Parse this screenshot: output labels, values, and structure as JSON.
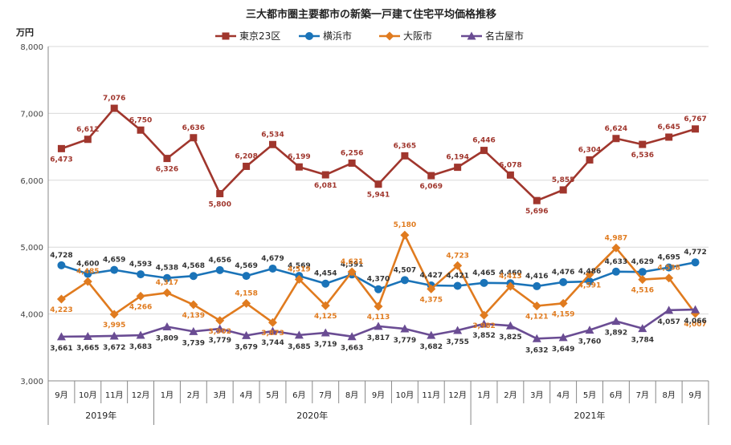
{
  "chart_data": {
    "type": "line",
    "title": "三大都市圏主要都市の新築一戸建て住宅平均価格推移",
    "ylabel": "万円",
    "ylim": [
      3000,
      8000
    ],
    "yticks": [
      "3,000",
      "4,000",
      "5,000",
      "6,000",
      "7,000",
      "8,000"
    ],
    "grid": true,
    "legend_position": "top",
    "categories": [
      "9月",
      "10月",
      "11月",
      "12月",
      "1月",
      "2月",
      "3月",
      "4月",
      "5月",
      "6月",
      "7月",
      "8月",
      "9月",
      "10月",
      "11月",
      "12月",
      "1月",
      "2月",
      "3月",
      "4月",
      "5月",
      "6月",
      "7月",
      "8月",
      "9月"
    ],
    "year_groups": [
      {
        "label": "2019年",
        "start": 0,
        "end": 3
      },
      {
        "label": "2020年",
        "start": 4,
        "end": 15
      },
      {
        "label": "2021年",
        "start": 16,
        "end": 24
      }
    ],
    "series": [
      {
        "name": "東京23区",
        "color": "#A0362D",
        "marker": "square",
        "values": [
          6473,
          6612,
          7076,
          6750,
          6326,
          6636,
          5800,
          6208,
          6534,
          6199,
          6081,
          6256,
          5941,
          6365,
          6069,
          6194,
          6446,
          6078,
          5696,
          5855,
          6304,
          6624,
          6536,
          6645,
          6767
        ],
        "labels": [
          "6,473",
          "6,612",
          "7,076",
          "6,750",
          "6,326",
          "6,636",
          "5,800",
          "6,208",
          "6,534",
          "6,199",
          "6,081",
          "6,256",
          "5,941",
          "6,365",
          "6,069",
          "6,194",
          "6,446",
          "6,078",
          "5,696",
          "5,855",
          "6,304",
          "6,624",
          "6,536",
          "6,645",
          "6,767"
        ]
      },
      {
        "name": "横浜市",
        "color": "#1A73B8",
        "marker": "circle",
        "values": [
          4728,
          4600,
          4659,
          4593,
          4538,
          4568,
          4656,
          4569,
          4679,
          4569,
          4454,
          4591,
          4370,
          4507,
          4427,
          4421,
          4465,
          4460,
          4416,
          4476,
          4486,
          4633,
          4629,
          4695,
          4772
        ],
        "labels": [
          "4,728",
          "4,600",
          "4,659",
          "4,593",
          "4,538",
          "4,568",
          "4,656",
          "4,569",
          "4,679",
          "4,569",
          "4,454",
          "4,591",
          "4,370",
          "4,507",
          "4,427",
          "4,421",
          "4,465",
          "4,460",
          "4,416",
          "4,476",
          "4,486",
          "4,633",
          "4,629",
          "4,695",
          "4,772"
        ]
      },
      {
        "name": "大阪市",
        "color": "#E07B1F",
        "marker": "diamond",
        "values": [
          4223,
          4485,
          3995,
          4266,
          4317,
          4139,
          3902,
          4158,
          3873,
          4519,
          4125,
          4631,
          4113,
          5180,
          4375,
          4723,
          3982,
          4413,
          4121,
          4159,
          4591,
          4987,
          4516,
          4538,
          4007
        ],
        "labels": [
          "4,223",
          "4,485",
          "3,995",
          "4,266",
          "4,317",
          "4,139",
          "3,902",
          "4,158",
          "3,873",
          "4,519",
          "4,125",
          "4,631",
          "4,113",
          "5,180",
          "4,375",
          "4,723",
          "3,982",
          "4,413",
          "4,121",
          "4,159",
          "4,591",
          "4,987",
          "4,516",
          "4,538",
          "4,007"
        ]
      },
      {
        "name": "名古屋市",
        "color": "#6A4C93",
        "marker": "triangle",
        "values": [
          3661,
          3665,
          3672,
          3683,
          3809,
          3739,
          3779,
          3679,
          3744,
          3685,
          3719,
          3663,
          3817,
          3779,
          3682,
          3755,
          3852,
          3825,
          3632,
          3649,
          3760,
          3892,
          3784,
          4057,
          4066
        ],
        "labels": [
          "3,661",
          "3,665",
          "3,672",
          "3,683",
          "3,809",
          "3,739",
          "3,779",
          "3,679",
          "3,744",
          "3,685",
          "3,719",
          "3,663",
          "3,817",
          "3,779",
          "3,682",
          "3,755",
          "3,852",
          "3,825",
          "3,632",
          "3,649",
          "3,760",
          "3,892",
          "3,784",
          "4,057",
          "4,066"
        ]
      }
    ]
  }
}
